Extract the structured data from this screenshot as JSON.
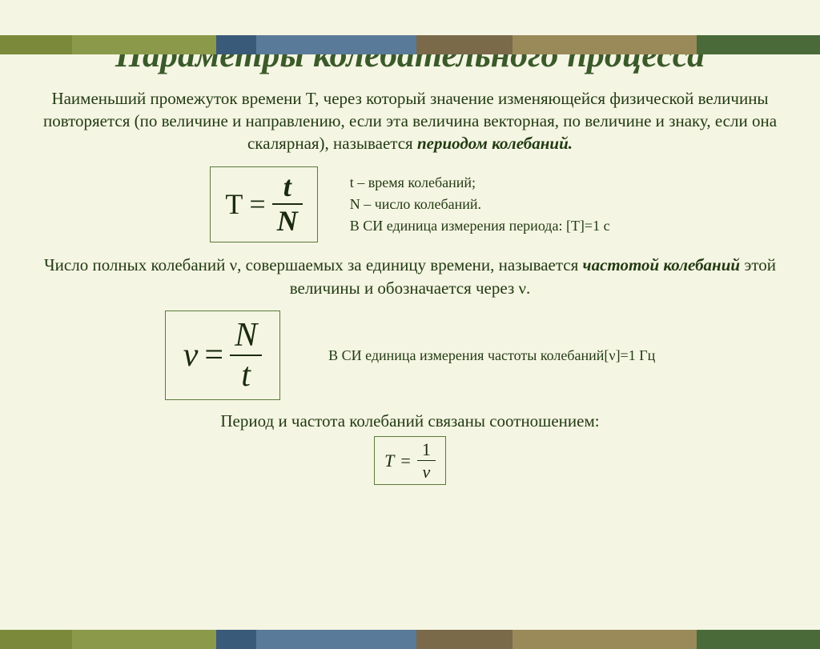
{
  "border": {
    "colors": [
      "#7a8a3a",
      "#8a9a4a",
      "#3a5a7a",
      "#5a7a9a",
      "#7a6a4a",
      "#9a8a5a",
      "#4a6a3a"
    ],
    "segments": [
      90,
      180,
      50,
      200,
      120,
      230,
      154
    ]
  },
  "title": {
    "text": "Параметры колебательного процесса",
    "fontsize": 44,
    "color": "#3b5a2a"
  },
  "paragraph1": {
    "text_before": "Наименьший промежуток времени T, через который значение изменяющейся физической величины повторяется (по величине и направлению, если эта величина векторная, по величине и знаку, если она скалярная), называется ",
    "emph": "периодом колебаний.",
    "fontsize": 21
  },
  "formula1": {
    "lhs": "T",
    "num": "t",
    "den": "N",
    "fontsize": 36,
    "frac_bold": true,
    "frac_italic": true
  },
  "side1": {
    "line1": "t – время колебаний;",
    "line2": "N – число колебаний.",
    "line3": "В СИ единица измерения периода:     [T]=1 с",
    "fontsize": 18
  },
  "paragraph2": {
    "part1": "Число полных колебаний ν, совершаемых за единицу времени, называется ",
    "emph": "частотой колебаний",
    "part2": " этой величины и обозначается через ν.",
    "fontsize": 21
  },
  "formula2": {
    "lhs": "ν",
    "num": "N",
    "den": "t",
    "fontsize": 42,
    "italic": true
  },
  "side2": {
    "text": "В СИ единица измерения частоты колебаний[ν]=1 Гц",
    "fontsize": 18
  },
  "paragraph3": {
    "text": "Период и частота колебаний связаны соотношением:",
    "fontsize": 21
  },
  "formula3": {
    "lhs": "T",
    "num": "1",
    "den": "ν",
    "fontsize": 22,
    "italic": true
  },
  "background_color": "#f5f5e3"
}
